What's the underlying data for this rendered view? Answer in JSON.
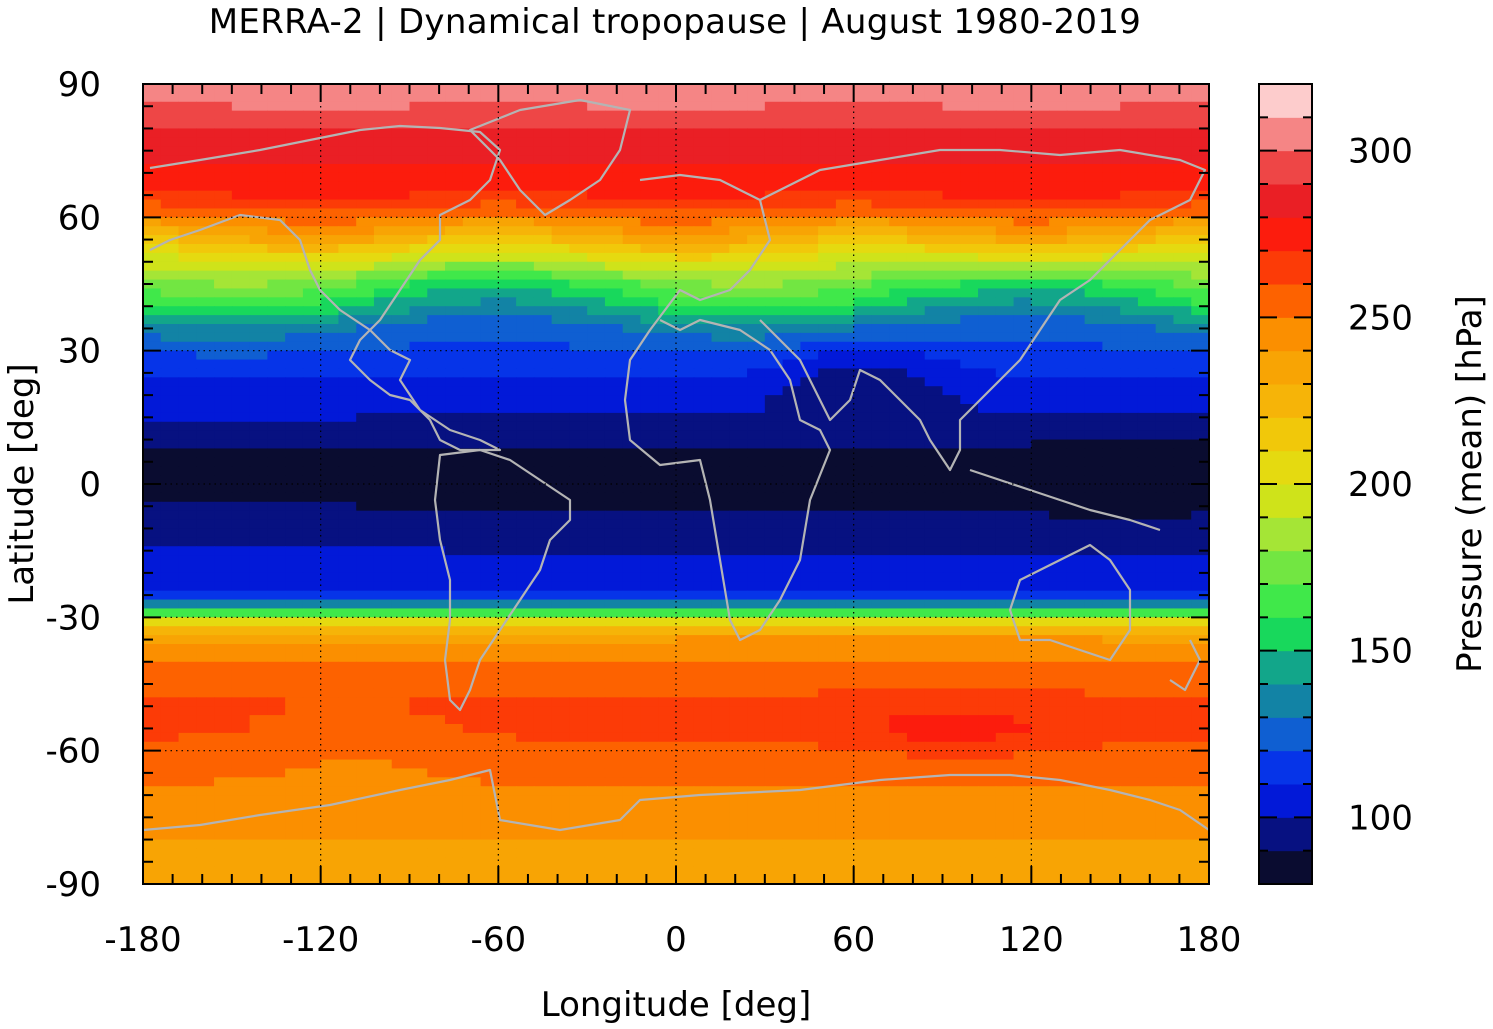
{
  "chart_data": {
    "type": "heatmap",
    "title": "MERRA-2 | Dynamical tropopause | August 1980-2019",
    "xlabel": "Longitude [deg]",
    "ylabel": "Latitude [deg]",
    "xlim": [
      -180,
      180
    ],
    "ylim": [
      -90,
      90
    ],
    "xticks": [
      -180,
      -120,
      -60,
      0,
      60,
      120,
      180
    ],
    "yticks": [
      90,
      60,
      30,
      0,
      -30,
      -60,
      -90
    ],
    "grid": "dotted, at 60 deg longitude and 30 deg latitude",
    "colorbar": {
      "label": "Pressure (mean) [hPa]",
      "range": [
        80,
        320
      ],
      "ticks": [
        100,
        150,
        200,
        250,
        300
      ],
      "levels": [
        80,
        90,
        100,
        110,
        120,
        130,
        140,
        150,
        160,
        170,
        180,
        190,
        200,
        210,
        220,
        230,
        240,
        250,
        260,
        270,
        280,
        290,
        300,
        310,
        320
      ],
      "colors": [
        "#0a0c30",
        "#071181",
        "#0219d8",
        "#0634e8",
        "#0f5fd2",
        "#1283a5",
        "#12a68a",
        "#18d85c",
        "#40e84a",
        "#72e642",
        "#a5e536",
        "#cfe31a",
        "#e5da10",
        "#f1c80a",
        "#f6b408",
        "#f8a404",
        "#fb8f00",
        "#fd6200",
        "#fc3b07",
        "#fc1c0d",
        "#ea1f25",
        "#ee4646",
        "#f58585",
        "#fdcccc"
      ]
    },
    "zonal_mean_profile": {
      "latitude": [
        90,
        85,
        80,
        75,
        70,
        65,
        60,
        55,
        50,
        45,
        40,
        35,
        30,
        25,
        20,
        15,
        10,
        5,
        0,
        -5,
        -10,
        -15,
        -20,
        -25,
        -28,
        -30,
        -35,
        -40,
        -45,
        -50,
        -55,
        -60,
        -65,
        -70,
        -75,
        -80,
        -85,
        -90
      ],
      "pressure_hPa": [
        305,
        300,
        290,
        283,
        278,
        270,
        250,
        225,
        195,
        168,
        150,
        130,
        120,
        112,
        103,
        100,
        92,
        88,
        88,
        90,
        95,
        100,
        103,
        112,
        140,
        200,
        240,
        252,
        258,
        262,
        263,
        258,
        252,
        248,
        243,
        240,
        238,
        236
      ]
    },
    "annotations": [
      "coastline outlines in grey"
    ]
  }
}
